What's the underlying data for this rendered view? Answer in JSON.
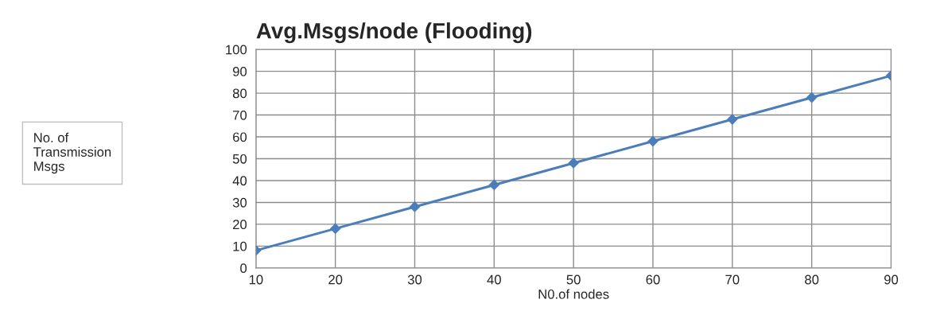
{
  "chart_data": {
    "type": "line",
    "title": "Avg.Msgs/node (Flooding)",
    "xlabel": "N0.of nodes",
    "annotations": [
      "No. of\nTransmission\nMsgs"
    ],
    "categories": [
      "10",
      "20",
      "30",
      "40",
      "50",
      "60",
      "70",
      "80",
      "90"
    ],
    "series": [
      {
        "color": "#4a7ebb",
        "values": [
          8,
          18,
          28,
          38,
          48,
          58,
          68,
          78,
          88
        ]
      }
    ],
    "ylim": [
      0,
      100
    ],
    "yticks": [
      0,
      10,
      20,
      30,
      40,
      50,
      60,
      70,
      80,
      90,
      100
    ],
    "grid": true,
    "marker": "diamond",
    "line_style": "solid"
  }
}
